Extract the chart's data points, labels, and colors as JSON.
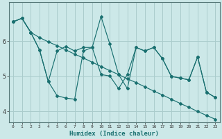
{
  "xlabel": "Humidex (Indice chaleur)",
  "xlim": [
    -0.5,
    23.5
  ],
  "ylim": [
    3.7,
    7.1
  ],
  "yticks": [
    4,
    5,
    6
  ],
  "xticks": [
    0,
    1,
    2,
    3,
    4,
    5,
    6,
    7,
    8,
    9,
    10,
    11,
    12,
    13,
    14,
    15,
    16,
    17,
    18,
    19,
    20,
    21,
    22,
    23
  ],
  "bg_color": "#cce8e8",
  "line_color": "#1a7070",
  "grid_color": "#aacccc",
  "series": [
    [
      6.55,
      6.65,
      6.25,
      5.75,
      4.85,
      5.72,
      5.85,
      5.72,
      5.82,
      5.82,
      5.05,
      5.01,
      4.65,
      5.05,
      5.82,
      5.72,
      5.82,
      5.5,
      5.0,
      4.95,
      4.9,
      5.55,
      4.55,
      4.4
    ],
    [
      6.55,
      6.65,
      6.25,
      6.1,
      5.98,
      5.87,
      5.75,
      5.63,
      5.52,
      5.4,
      5.28,
      5.16,
      5.05,
      4.93,
      4.82,
      4.7,
      4.58,
      4.47,
      4.35,
      4.23,
      4.12,
      4.0,
      3.89,
      3.78
    ],
    [
      6.55,
      6.65,
      6.25,
      5.75,
      4.85,
      4.45,
      4.38,
      4.35,
      5.72,
      5.82,
      6.7,
      5.92,
      5.05,
      4.65,
      5.82,
      5.72,
      5.82,
      5.5,
      5.0,
      4.95,
      4.9,
      5.55,
      4.55,
      4.4
    ]
  ]
}
